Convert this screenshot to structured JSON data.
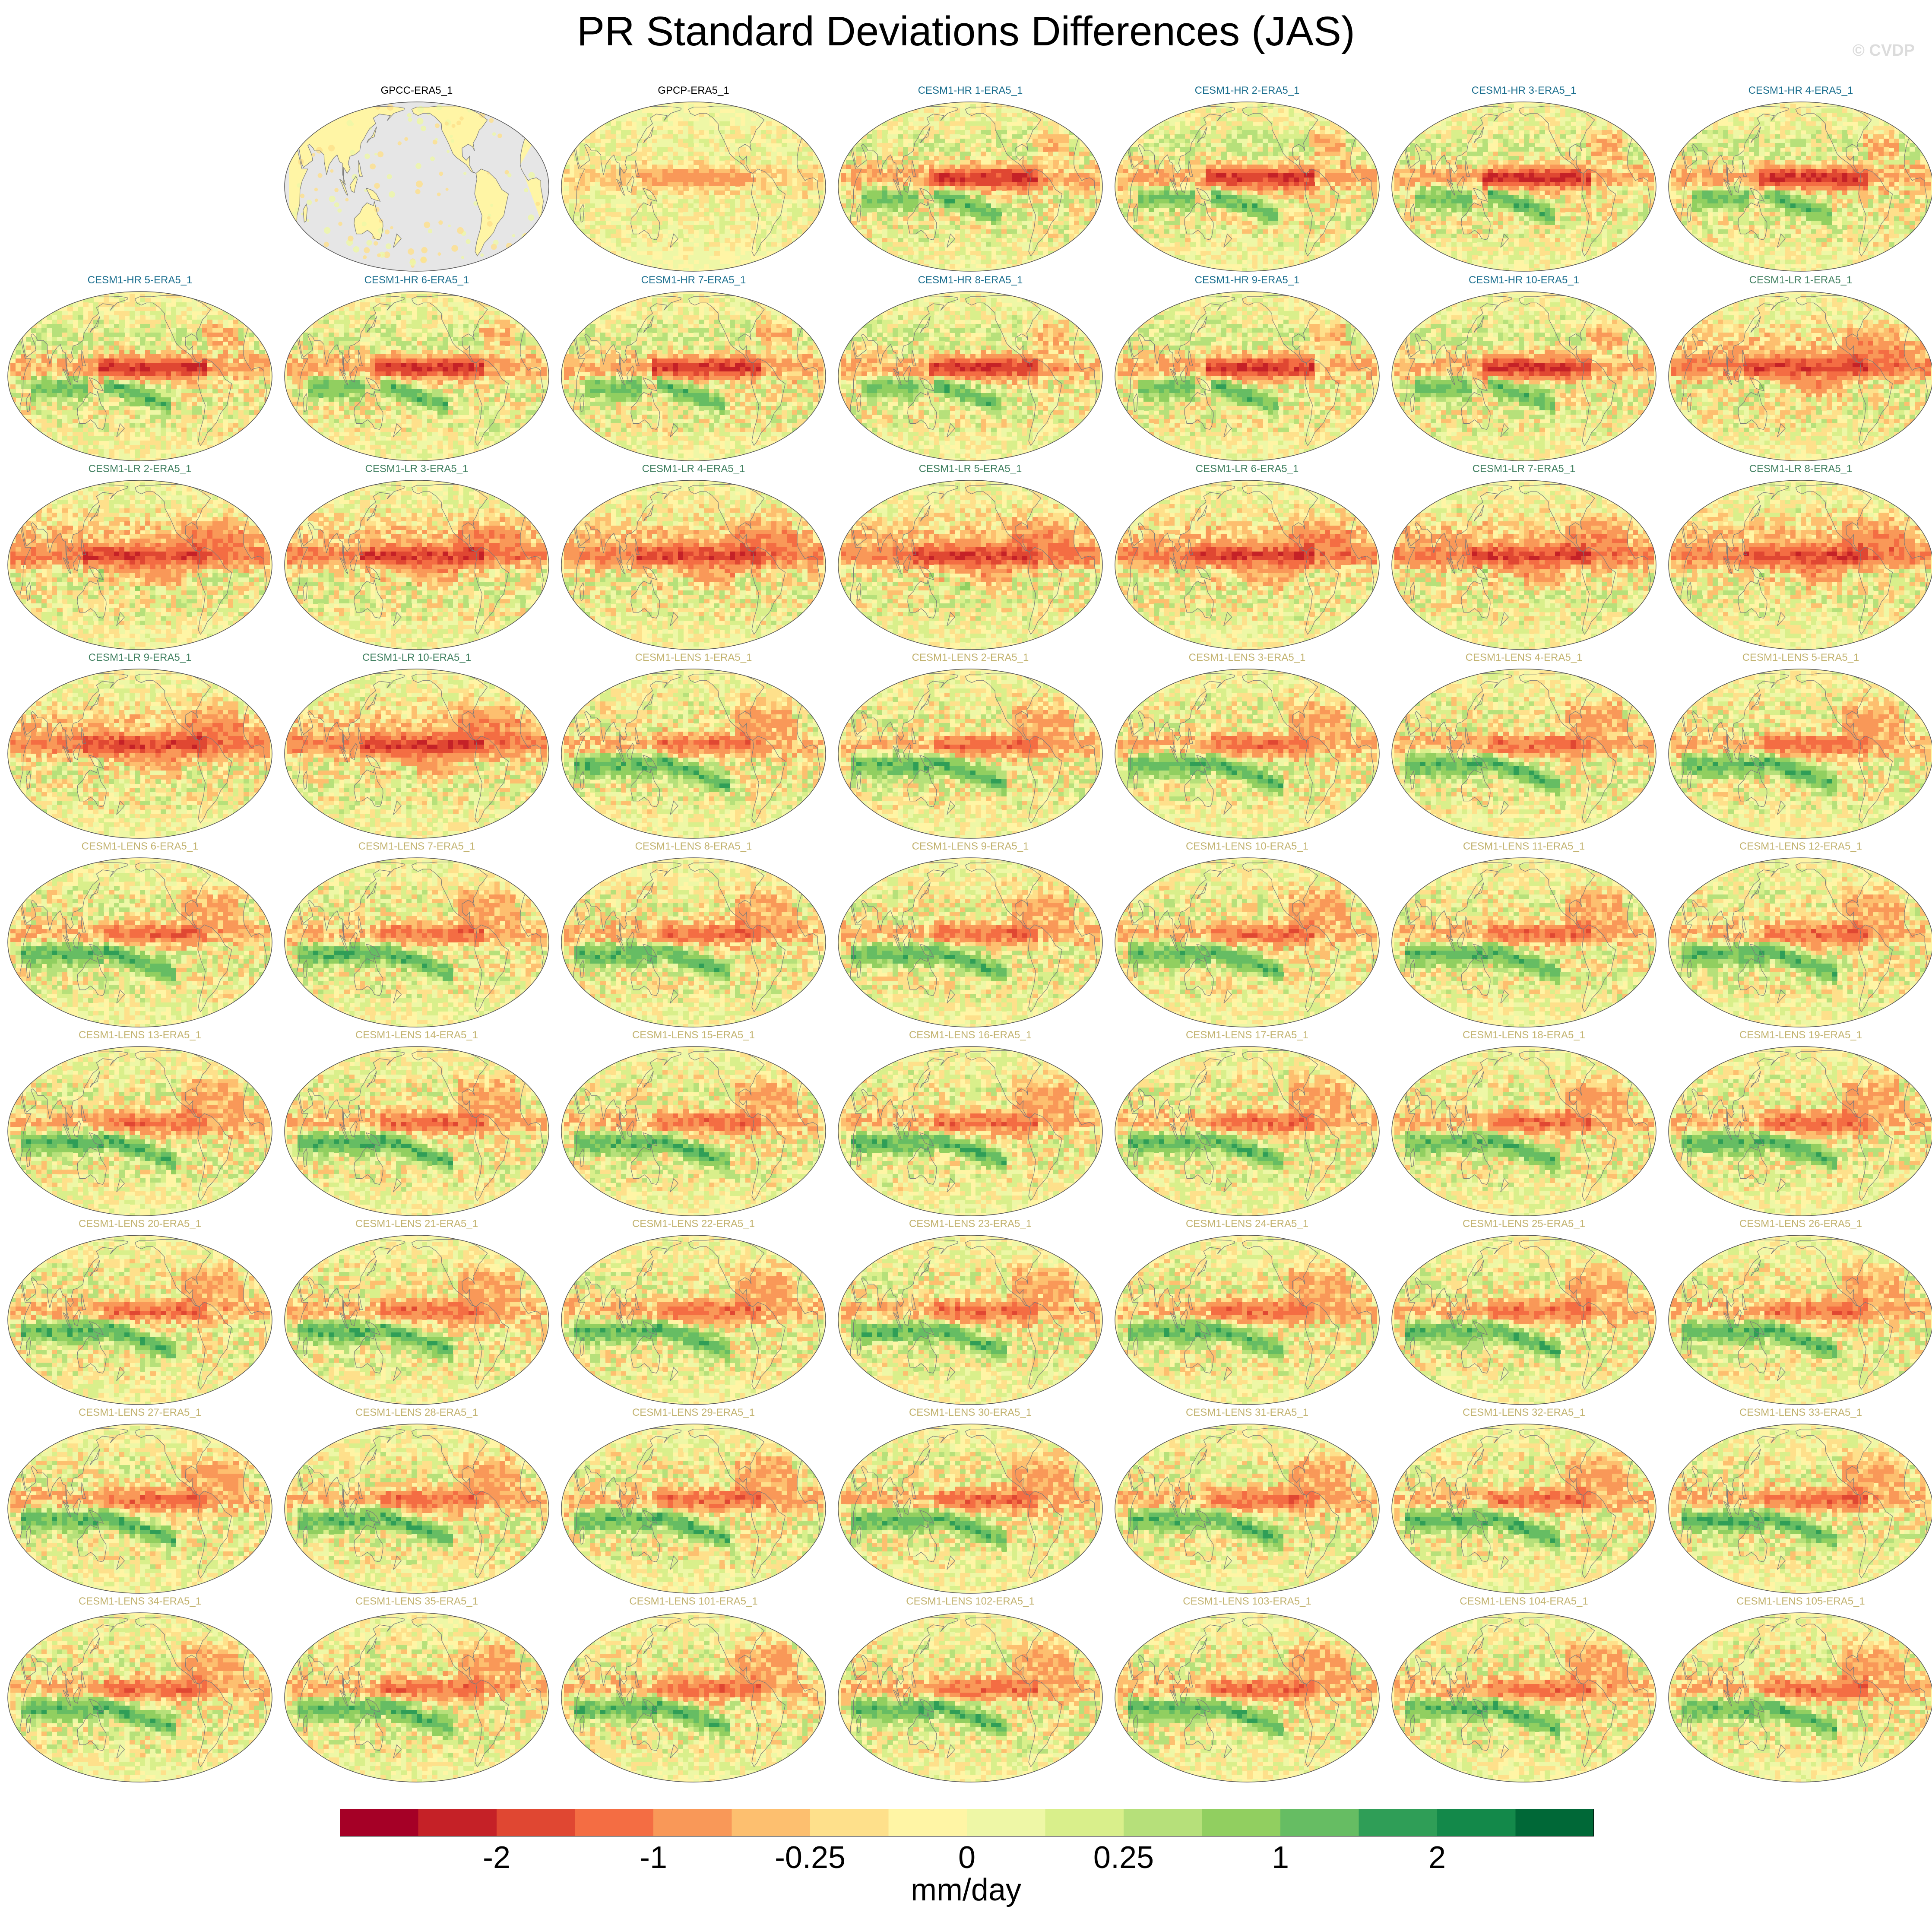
{
  "title": "PR Standard Deviations Differences (JAS)",
  "watermark": "© CVDP",
  "chart_data": {
    "type": "heatmap",
    "title": "PR Standard Deviations Differences (JAS)",
    "units": "mm/day",
    "projection": "global ellipse (Robinson), Pacific-centered",
    "missing_color": "#e6e6e6",
    "colorbar": {
      "colors": [
        "#a50026",
        "#c52127",
        "#e04732",
        "#f46d43",
        "#f99858",
        "#fdbf6f",
        "#fee08b",
        "#fff5a5",
        "#eef7a6",
        "#d9ef8b",
        "#b6e07a",
        "#91cf60",
        "#66bd63",
        "#2f9e57",
        "#13894a",
        "#006837"
      ],
      "tick_labels": [
        "-2",
        "-1",
        "-0.25",
        "0",
        "0.25",
        "1",
        "2"
      ]
    },
    "title_colors": {
      "obs": "#000000",
      "CESM1-HR": "#1a6e8e",
      "CESM1-LR": "#3f7f5f",
      "CESM1-LENS": "#c2b26e"
    },
    "panels": [
      {
        "label": "GPCC-ERA5_1",
        "group": "obs",
        "style": "land"
      },
      {
        "label": "GPCP-ERA5_1",
        "group": "obs",
        "style": "gpcp"
      },
      {
        "label": "CESM1-HR 1-ERA5_1",
        "group": "CESM1-HR",
        "style": "hr"
      },
      {
        "label": "CESM1-HR 2-ERA5_1",
        "group": "CESM1-HR",
        "style": "hr"
      },
      {
        "label": "CESM1-HR 3-ERA5_1",
        "group": "CESM1-HR",
        "style": "hr"
      },
      {
        "label": "CESM1-HR 4-ERA5_1",
        "group": "CESM1-HR",
        "style": "hr"
      },
      {
        "label": "CESM1-HR 5-ERA5_1",
        "group": "CESM1-HR",
        "style": "hr"
      },
      {
        "label": "CESM1-HR 6-ERA5_1",
        "group": "CESM1-HR",
        "style": "hr"
      },
      {
        "label": "CESM1-HR 7-ERA5_1",
        "group": "CESM1-HR",
        "style": "hr"
      },
      {
        "label": "CESM1-HR 8-ERA5_1",
        "group": "CESM1-HR",
        "style": "hr"
      },
      {
        "label": "CESM1-HR 9-ERA5_1",
        "group": "CESM1-HR",
        "style": "hr"
      },
      {
        "label": "CESM1-HR 10-ERA5_1",
        "group": "CESM1-HR",
        "style": "hr"
      },
      {
        "label": "CESM1-LR 1-ERA5_1",
        "group": "CESM1-LR",
        "style": "lr"
      },
      {
        "label": "CESM1-LR 2-ERA5_1",
        "group": "CESM1-LR",
        "style": "lr"
      },
      {
        "label": "CESM1-LR 3-ERA5_1",
        "group": "CESM1-LR",
        "style": "lr"
      },
      {
        "label": "CESM1-LR 4-ERA5_1",
        "group": "CESM1-LR",
        "style": "lr"
      },
      {
        "label": "CESM1-LR 5-ERA5_1",
        "group": "CESM1-LR",
        "style": "lr"
      },
      {
        "label": "CESM1-LR 6-ERA5_1",
        "group": "CESM1-LR",
        "style": "lr"
      },
      {
        "label": "CESM1-LR 7-ERA5_1",
        "group": "CESM1-LR",
        "style": "lr"
      },
      {
        "label": "CESM1-LR 8-ERA5_1",
        "group": "CESM1-LR",
        "style": "lr"
      },
      {
        "label": "CESM1-LR 9-ERA5_1",
        "group": "CESM1-LR",
        "style": "lr"
      },
      {
        "label": "CESM1-LR 10-ERA5_1",
        "group": "CESM1-LR",
        "style": "lr"
      },
      {
        "label": "CESM1-LENS 1-ERA5_1",
        "group": "CESM1-LENS",
        "style": "lens"
      },
      {
        "label": "CESM1-LENS 2-ERA5_1",
        "group": "CESM1-LENS",
        "style": "lens"
      },
      {
        "label": "CESM1-LENS 3-ERA5_1",
        "group": "CESM1-LENS",
        "style": "lens"
      },
      {
        "label": "CESM1-LENS 4-ERA5_1",
        "group": "CESM1-LENS",
        "style": "lens"
      },
      {
        "label": "CESM1-LENS 5-ERA5_1",
        "group": "CESM1-LENS",
        "style": "lens"
      },
      {
        "label": "CESM1-LENS 6-ERA5_1",
        "group": "CESM1-LENS",
        "style": "lens"
      },
      {
        "label": "CESM1-LENS 7-ERA5_1",
        "group": "CESM1-LENS",
        "style": "lens"
      },
      {
        "label": "CESM1-LENS 8-ERA5_1",
        "group": "CESM1-LENS",
        "style": "lens"
      },
      {
        "label": "CESM1-LENS 9-ERA5_1",
        "group": "CESM1-LENS",
        "style": "lens"
      },
      {
        "label": "CESM1-LENS 10-ERA5_1",
        "group": "CESM1-LENS",
        "style": "lens"
      },
      {
        "label": "CESM1-LENS 11-ERA5_1",
        "group": "CESM1-LENS",
        "style": "lens"
      },
      {
        "label": "CESM1-LENS 12-ERA5_1",
        "group": "CESM1-LENS",
        "style": "lens"
      },
      {
        "label": "CESM1-LENS 13-ERA5_1",
        "group": "CESM1-LENS",
        "style": "lens"
      },
      {
        "label": "CESM1-LENS 14-ERA5_1",
        "group": "CESM1-LENS",
        "style": "lens"
      },
      {
        "label": "CESM1-LENS 15-ERA5_1",
        "group": "CESM1-LENS",
        "style": "lens"
      },
      {
        "label": "CESM1-LENS 16-ERA5_1",
        "group": "CESM1-LENS",
        "style": "lens"
      },
      {
        "label": "CESM1-LENS 17-ERA5_1",
        "group": "CESM1-LENS",
        "style": "lens"
      },
      {
        "label": "CESM1-LENS 18-ERA5_1",
        "group": "CESM1-LENS",
        "style": "lens"
      },
      {
        "label": "CESM1-LENS 19-ERA5_1",
        "group": "CESM1-LENS",
        "style": "lens"
      },
      {
        "label": "CESM1-LENS 20-ERA5_1",
        "group": "CESM1-LENS",
        "style": "lens"
      },
      {
        "label": "CESM1-LENS 21-ERA5_1",
        "group": "CESM1-LENS",
        "style": "lens"
      },
      {
        "label": "CESM1-LENS 22-ERA5_1",
        "group": "CESM1-LENS",
        "style": "lens"
      },
      {
        "label": "CESM1-LENS 23-ERA5_1",
        "group": "CESM1-LENS",
        "style": "lens"
      },
      {
        "label": "CESM1-LENS 24-ERA5_1",
        "group": "CESM1-LENS",
        "style": "lens"
      },
      {
        "label": "CESM1-LENS 25-ERA5_1",
        "group": "CESM1-LENS",
        "style": "lens"
      },
      {
        "label": "CESM1-LENS 26-ERA5_1",
        "group": "CESM1-LENS",
        "style": "lens"
      },
      {
        "label": "CESM1-LENS 27-ERA5_1",
        "group": "CESM1-LENS",
        "style": "lens"
      },
      {
        "label": "CESM1-LENS 28-ERA5_1",
        "group": "CESM1-LENS",
        "style": "lens"
      },
      {
        "label": "CESM1-LENS 29-ERA5_1",
        "group": "CESM1-LENS",
        "style": "lens"
      },
      {
        "label": "CESM1-LENS 30-ERA5_1",
        "group": "CESM1-LENS",
        "style": "lens"
      },
      {
        "label": "CESM1-LENS 31-ERA5_1",
        "group": "CESM1-LENS",
        "style": "lens"
      },
      {
        "label": "CESM1-LENS 32-ERA5_1",
        "group": "CESM1-LENS",
        "style": "lens"
      },
      {
        "label": "CESM1-LENS 33-ERA5_1",
        "group": "CESM1-LENS",
        "style": "lens"
      },
      {
        "label": "CESM1-LENS 34-ERA5_1",
        "group": "CESM1-LENS",
        "style": "lens"
      },
      {
        "label": "CESM1-LENS 35-ERA5_1",
        "group": "CESM1-LENS",
        "style": "lens"
      },
      {
        "label": "CESM1-LENS 101-ERA5_1",
        "group": "CESM1-LENS",
        "style": "lens"
      },
      {
        "label": "CESM1-LENS 102-ERA5_1",
        "group": "CESM1-LENS",
        "style": "lens"
      },
      {
        "label": "CESM1-LENS 103-ERA5_1",
        "group": "CESM1-LENS",
        "style": "lens"
      },
      {
        "label": "CESM1-LENS 104-ERA5_1",
        "group": "CESM1-LENS",
        "style": "lens"
      },
      {
        "label": "CESM1-LENS 105-ERA5_1",
        "group": "CESM1-LENS",
        "style": "lens"
      }
    ]
  }
}
